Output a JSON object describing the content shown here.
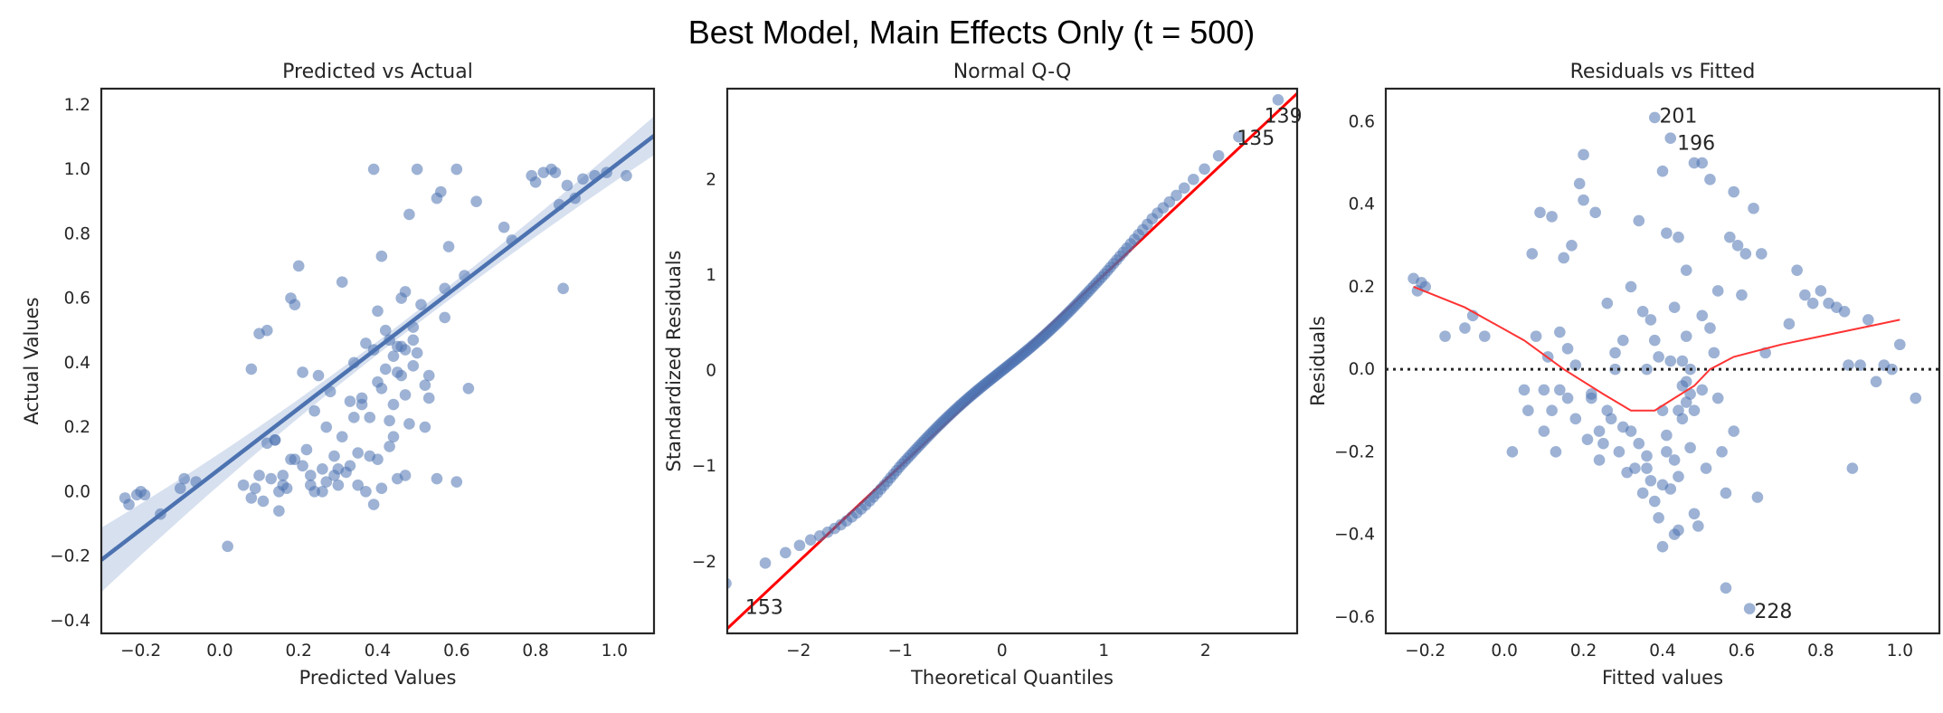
{
  "figure": {
    "suptitle": "Best Model, Main Effects Only (t = 500)"
  },
  "colors": {
    "points": "#4c72b0",
    "regression": "#4c72b0",
    "ci_band": "#c9d6ea",
    "qq_line": "#ff0000",
    "lowess": "#ff3333",
    "zero_line": "#262626"
  },
  "chart_data": [
    {
      "id": "pred-actual",
      "type": "scatter",
      "title": "Predicted vs Actual",
      "xlabel": "Predicted Values",
      "ylabel": "Actual Values",
      "xlim": [
        -0.3,
        1.1
      ],
      "ylim": [
        -0.44,
        1.25
      ],
      "xticks": [
        -0.2,
        0.0,
        0.2,
        0.4,
        0.6,
        0.8,
        1.0
      ],
      "xtick_labels": [
        "−0.2",
        "0.0",
        "0.2",
        "0.4",
        "0.6",
        "0.8",
        "1.0"
      ],
      "yticks": [
        -0.4,
        -0.2,
        0.0,
        0.2,
        0.4,
        0.6,
        0.8,
        1.0,
        1.2
      ],
      "ytick_labels": [
        "−0.4",
        "−0.2",
        "0.0",
        "0.2",
        "0.4",
        "0.6",
        "0.8",
        "1.0",
        "1.2"
      ],
      "grid": false,
      "regression": {
        "slope": 0.94,
        "intercept": 0.07,
        "ci_at_xmin": 0.1,
        "ci_at_center": 0.02,
        "center_x": 0.45,
        "ci_at_xmax": 0.06
      },
      "points": [
        [
          -0.24,
          -0.02
        ],
        [
          -0.23,
          -0.04
        ],
        [
          -0.21,
          -0.01
        ],
        [
          -0.2,
          0.0
        ],
        [
          -0.19,
          -0.01
        ],
        [
          -0.15,
          -0.07
        ],
        [
          -0.1,
          0.01
        ],
        [
          -0.09,
          0.04
        ],
        [
          -0.06,
          0.03
        ],
        [
          0.02,
          -0.17
        ],
        [
          0.06,
          0.02
        ],
        [
          0.08,
          -0.02
        ],
        [
          0.09,
          0.01
        ],
        [
          0.1,
          0.05
        ],
        [
          0.11,
          -0.03
        ],
        [
          0.12,
          0.15
        ],
        [
          0.13,
          0.04
        ],
        [
          0.14,
          0.16
        ],
        [
          0.15,
          -0.06
        ],
        [
          0.16,
          0.05
        ],
        [
          0.17,
          0.01
        ],
        [
          0.18,
          0.6
        ],
        [
          0.19,
          0.58
        ],
        [
          0.2,
          0.7
        ],
        [
          0.21,
          0.37
        ],
        [
          0.22,
          0.13
        ],
        [
          0.23,
          0.05
        ],
        [
          0.24,
          0.25
        ],
        [
          0.25,
          0.36
        ],
        [
          0.26,
          0.0
        ],
        [
          0.27,
          0.2
        ],
        [
          0.28,
          0.31
        ],
        [
          0.29,
          0.11
        ],
        [
          0.3,
          0.02
        ],
        [
          0.31,
          0.65
        ],
        [
          0.32,
          0.06
        ],
        [
          0.33,
          0.28
        ],
        [
          0.34,
          0.4
        ],
        [
          0.35,
          0.12
        ],
        [
          0.36,
          0.29
        ],
        [
          0.37,
          0.46
        ],
        [
          0.38,
          0.11
        ],
        [
          0.39,
          1.0
        ],
        [
          0.4,
          0.56
        ],
        [
          0.41,
          0.73
        ],
        [
          0.42,
          0.38
        ],
        [
          0.43,
          0.22
        ],
        [
          0.44,
          0.42
        ],
        [
          0.45,
          0.45
        ],
        [
          0.46,
          0.6
        ],
        [
          0.47,
          0.44
        ],
        [
          0.48,
          0.86
        ],
        [
          0.49,
          0.47
        ],
        [
          0.5,
          1.0
        ],
        [
          0.51,
          0.58
        ],
        [
          0.52,
          0.33
        ],
        [
          0.53,
          0.36
        ],
        [
          0.55,
          0.91
        ],
        [
          0.56,
          0.93
        ],
        [
          0.57,
          0.54
        ],
        [
          0.58,
          0.76
        ],
        [
          0.6,
          1.0
        ],
        [
          0.62,
          0.67
        ],
        [
          0.63,
          0.32
        ],
        [
          0.65,
          0.9
        ],
        [
          0.72,
          0.82
        ],
        [
          0.74,
          0.78
        ],
        [
          0.79,
          0.98
        ],
        [
          0.8,
          0.96
        ],
        [
          0.82,
          0.99
        ],
        [
          0.84,
          1.0
        ],
        [
          0.85,
          0.99
        ],
        [
          0.86,
          0.89
        ],
        [
          0.87,
          0.63
        ],
        [
          0.88,
          0.95
        ],
        [
          0.9,
          0.91
        ],
        [
          0.92,
          0.97
        ],
        [
          0.95,
          0.98
        ],
        [
          0.98,
          0.99
        ],
        [
          1.03,
          0.98
        ],
        [
          0.08,
          0.38
        ],
        [
          0.1,
          0.49
        ],
        [
          0.12,
          0.5
        ],
        [
          0.14,
          0.16
        ],
        [
          0.16,
          0.02
        ],
        [
          0.19,
          0.1
        ],
        [
          0.21,
          0.08
        ],
        [
          0.24,
          0.0
        ],
        [
          0.27,
          0.03
        ],
        [
          0.29,
          0.05
        ],
        [
          0.31,
          0.17
        ],
        [
          0.33,
          0.08
        ],
        [
          0.35,
          0.02
        ],
        [
          0.37,
          0.0
        ],
        [
          0.39,
          -0.04
        ],
        [
          0.41,
          0.01
        ],
        [
          0.43,
          0.14
        ],
        [
          0.45,
          0.04
        ],
        [
          0.47,
          0.05
        ],
        [
          0.49,
          0.39
        ],
        [
          0.36,
          0.27
        ],
        [
          0.38,
          0.23
        ],
        [
          0.4,
          0.34
        ],
        [
          0.42,
          0.5
        ],
        [
          0.44,
          0.27
        ],
        [
          0.46,
          0.36
        ],
        [
          0.48,
          0.21
        ],
        [
          0.5,
          0.43
        ],
        [
          0.52,
          0.2
        ],
        [
          0.55,
          0.04
        ],
        [
          0.6,
          0.03
        ],
        [
          0.4,
          0.1
        ],
        [
          0.44,
          0.17
        ],
        [
          0.46,
          0.45
        ],
        [
          0.47,
          0.3
        ],
        [
          0.43,
          0.47
        ],
        [
          0.45,
          0.37
        ],
        [
          0.41,
          0.32
        ],
        [
          0.39,
          0.44
        ],
        [
          0.34,
          0.23
        ],
        [
          0.3,
          0.07
        ],
        [
          0.26,
          0.07
        ],
        [
          0.23,
          0.02
        ],
        [
          0.18,
          0.1
        ],
        [
          0.15,
          0.0
        ],
        [
          0.53,
          0.29
        ],
        [
          0.57,
          0.63
        ],
        [
          0.49,
          0.51
        ],
        [
          0.47,
          0.62
        ]
      ]
    },
    {
      "id": "qq",
      "type": "scatter",
      "title": "Normal Q-Q",
      "xlabel": "Theoretical Quantiles",
      "ylabel": "Standardized Residuals",
      "xlim": [
        -2.7,
        2.9
      ],
      "ylim": [
        -2.75,
        2.95
      ],
      "xticks": [
        -2,
        -1,
        0,
        1,
        2
      ],
      "xtick_labels": [
        "−2",
        "−1",
        "0",
        "1",
        "2"
      ],
      "yticks": [
        -2,
        -1,
        0,
        1,
        2
      ],
      "ytick_labels": [
        "−2",
        "−1",
        "0",
        "1",
        "2"
      ],
      "grid": false,
      "reference_line": {
        "slope": 1.0,
        "intercept": 0.0
      },
      "points_generator": {
        "n": 150,
        "shape": "normal-quantile"
      },
      "annotations": [
        {
          "text": "139",
          "x": 2.55,
          "y": 2.67
        },
        {
          "text": "135",
          "x": 2.28,
          "y": 2.44
        },
        {
          "text": "153",
          "x": -2.55,
          "y": -2.47
        }
      ]
    },
    {
      "id": "resid-fitted",
      "type": "scatter",
      "title": "Residuals vs Fitted",
      "xlabel": "Fitted values",
      "ylabel": "Residuals",
      "xlim": [
        -0.3,
        1.1
      ],
      "ylim": [
        -0.64,
        0.68
      ],
      "xticks": [
        -0.2,
        0.0,
        0.2,
        0.4,
        0.6,
        0.8,
        1.0
      ],
      "xtick_labels": [
        "−0.2",
        "0.0",
        "0.2",
        "0.4",
        "0.6",
        "0.8",
        "1.0"
      ],
      "yticks": [
        -0.6,
        -0.4,
        -0.2,
        0.0,
        0.2,
        0.4,
        0.6
      ],
      "ytick_labels": [
        "−0.6",
        "−0.4",
        "−0.2",
        "0.0",
        "0.2",
        "0.4",
        "0.6"
      ],
      "grid": false,
      "zero_line": 0.0,
      "lowess": [
        [
          -0.23,
          0.2
        ],
        [
          -0.1,
          0.15
        ],
        [
          0.05,
          0.07
        ],
        [
          0.15,
          0.0
        ],
        [
          0.25,
          -0.06
        ],
        [
          0.32,
          -0.1
        ],
        [
          0.38,
          -0.1
        ],
        [
          0.43,
          -0.07
        ],
        [
          0.48,
          -0.04
        ],
        [
          0.52,
          0.0
        ],
        [
          0.58,
          0.03
        ],
        [
          0.7,
          0.06
        ],
        [
          0.85,
          0.09
        ],
        [
          0.95,
          0.11
        ],
        [
          1.0,
          0.12
        ]
      ],
      "annotations": [
        {
          "text": "201",
          "x": 0.385,
          "y": 0.615
        },
        {
          "text": "196",
          "x": 0.43,
          "y": 0.55
        },
        {
          "text": "228",
          "x": 0.625,
          "y": -0.585
        }
      ],
      "points": [
        [
          -0.23,
          0.22
        ],
        [
          -0.22,
          0.19
        ],
        [
          -0.21,
          0.21
        ],
        [
          -0.2,
          0.2
        ],
        [
          -0.15,
          0.08
        ],
        [
          -0.1,
          0.1
        ],
        [
          -0.08,
          0.13
        ],
        [
          -0.05,
          0.08
        ],
        [
          0.02,
          -0.2
        ],
        [
          0.05,
          -0.05
        ],
        [
          0.06,
          -0.1
        ],
        [
          0.07,
          0.28
        ],
        [
          0.08,
          0.08
        ],
        [
          0.09,
          0.38
        ],
        [
          0.1,
          -0.05
        ],
        [
          0.11,
          0.03
        ],
        [
          0.12,
          -0.1
        ],
        [
          0.12,
          0.37
        ],
        [
          0.13,
          -0.2
        ],
        [
          0.14,
          0.09
        ],
        [
          0.15,
          0.27
        ],
        [
          0.16,
          -0.07
        ],
        [
          0.17,
          0.3
        ],
        [
          0.18,
          0.01
        ],
        [
          0.19,
          0.45
        ],
        [
          0.2,
          0.41
        ],
        [
          0.2,
          0.52
        ],
        [
          0.21,
          -0.17
        ],
        [
          0.22,
          -0.06
        ],
        [
          0.23,
          0.38
        ],
        [
          0.24,
          -0.15
        ],
        [
          0.25,
          -0.18
        ],
        [
          0.26,
          0.16
        ],
        [
          0.27,
          -0.12
        ],
        [
          0.28,
          0.0
        ],
        [
          0.29,
          -0.2
        ],
        [
          0.3,
          0.07
        ],
        [
          0.31,
          -0.25
        ],
        [
          0.32,
          0.2
        ],
        [
          0.33,
          -0.24
        ],
        [
          0.34,
          0.36
        ],
        [
          0.35,
          -0.3
        ],
        [
          0.36,
          0.0
        ],
        [
          0.37,
          -0.27
        ],
        [
          0.37,
          0.12
        ],
        [
          0.38,
          0.07
        ],
        [
          0.38,
          0.61
        ],
        [
          0.39,
          -0.36
        ],
        [
          0.4,
          0.48
        ],
        [
          0.4,
          -0.1
        ],
        [
          0.41,
          0.33
        ],
        [
          0.41,
          -0.2
        ],
        [
          0.42,
          0.56
        ],
        [
          0.42,
          0.02
        ],
        [
          0.43,
          -0.4
        ],
        [
          0.43,
          0.15
        ],
        [
          0.44,
          -0.26
        ],
        [
          0.44,
          0.32
        ],
        [
          0.45,
          -0.04
        ],
        [
          0.45,
          0.02
        ],
        [
          0.46,
          -0.08
        ],
        [
          0.46,
          0.24
        ],
        [
          0.47,
          0.0
        ],
        [
          0.47,
          -0.19
        ],
        [
          0.48,
          0.5
        ],
        [
          0.48,
          -0.35
        ],
        [
          0.49,
          -0.38
        ],
        [
          0.5,
          0.5
        ],
        [
          0.5,
          -0.05
        ],
        [
          0.51,
          -0.24
        ],
        [
          0.52,
          0.46
        ],
        [
          0.53,
          0.04
        ],
        [
          0.54,
          0.19
        ],
        [
          0.55,
          -0.2
        ],
        [
          0.56,
          -0.53
        ],
        [
          0.57,
          0.32
        ],
        [
          0.58,
          0.43
        ],
        [
          0.59,
          0.3
        ],
        [
          0.6,
          0.18
        ],
        [
          0.61,
          0.28
        ],
        [
          0.62,
          -0.58
        ],
        [
          0.63,
          0.39
        ],
        [
          0.64,
          -0.31
        ],
        [
          0.65,
          0.28
        ],
        [
          0.66,
          0.04
        ],
        [
          0.72,
          0.11
        ],
        [
          0.74,
          0.24
        ],
        [
          0.76,
          0.18
        ],
        [
          0.78,
          0.16
        ],
        [
          0.8,
          0.19
        ],
        [
          0.82,
          0.16
        ],
        [
          0.84,
          0.15
        ],
        [
          0.86,
          0.14
        ],
        [
          0.87,
          0.01
        ],
        [
          0.88,
          -0.24
        ],
        [
          0.9,
          0.01
        ],
        [
          0.92,
          0.12
        ],
        [
          0.94,
          -0.03
        ],
        [
          0.96,
          0.01
        ],
        [
          0.98,
          0.0
        ],
        [
          1.0,
          0.06
        ],
        [
          1.04,
          -0.07
        ],
        [
          0.14,
          -0.05
        ],
        [
          0.18,
          -0.12
        ],
        [
          0.22,
          -0.07
        ],
        [
          0.26,
          -0.1
        ],
        [
          0.3,
          -0.14
        ],
        [
          0.34,
          -0.18
        ],
        [
          0.36,
          -0.21
        ],
        [
          0.38,
          -0.32
        ],
        [
          0.4,
          -0.43
        ],
        [
          0.42,
          -0.29
        ],
        [
          0.44,
          -0.39
        ],
        [
          0.46,
          0.08
        ],
        [
          0.48,
          -0.1
        ],
        [
          0.5,
          0.13
        ],
        [
          0.52,
          0.1
        ],
        [
          0.54,
          -0.07
        ],
        [
          0.56,
          -0.3
        ],
        [
          0.58,
          -0.15
        ],
        [
          0.32,
          -0.15
        ],
        [
          0.36,
          -0.24
        ],
        [
          0.4,
          -0.28
        ],
        [
          0.44,
          -0.1
        ],
        [
          0.46,
          -0.03
        ],
        [
          0.35,
          0.14
        ],
        [
          0.28,
          0.04
        ],
        [
          0.24,
          -0.22
        ],
        [
          0.16,
          0.05
        ],
        [
          0.1,
          -0.15
        ],
        [
          0.39,
          0.03
        ],
        [
          0.43,
          -0.22
        ],
        [
          0.47,
          -0.06
        ],
        [
          0.45,
          -0.12
        ],
        [
          0.41,
          -0.16
        ]
      ]
    }
  ]
}
